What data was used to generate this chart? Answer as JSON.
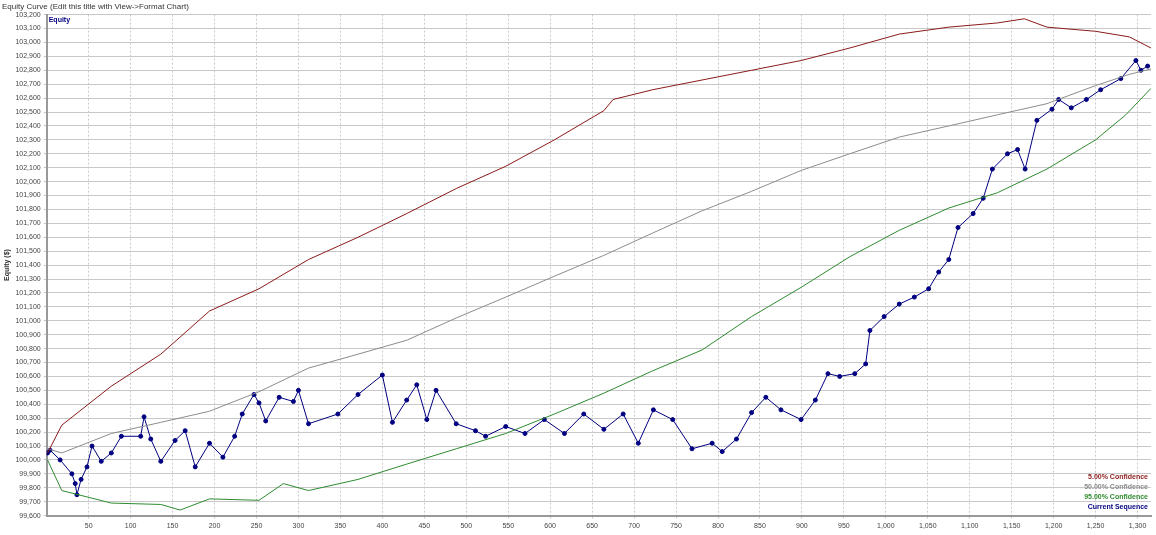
{
  "chart_data": {
    "type": "line",
    "title": "Equity Curve (Edit this title with View->Format Chart)",
    "subtitle": "Equity",
    "ylabel": "Equity ($)",
    "xlim": [
      0,
      1316
    ],
    "xticks": [
      50,
      100,
      150,
      200,
      250,
      300,
      350,
      400,
      450,
      500,
      550,
      600,
      650,
      700,
      750,
      800,
      850,
      900,
      950,
      {
        "value": 1000,
        "label": "1,000"
      },
      {
        "value": 1050,
        "label": "1,050"
      },
      {
        "value": 1100,
        "label": "1,100"
      },
      {
        "value": 1150,
        "label": "1,150"
      },
      {
        "value": 1200,
        "label": "1,200"
      },
      {
        "value": 1250,
        "label": "1,250"
      },
      {
        "value": 1300,
        "label": "1,300"
      }
    ],
    "ylim": [
      99600,
      103200
    ],
    "yticks": [
      {
        "value": 99600,
        "label": "99,600"
      },
      {
        "value": 99700,
        "label": "99,700"
      },
      {
        "value": 99800,
        "label": "99,800"
      },
      {
        "value": 99900,
        "label": "99,900"
      },
      {
        "value": 100000,
        "label": "100,000"
      },
      {
        "value": 100100,
        "label": "100,100"
      },
      {
        "value": 100200,
        "label": "100,200"
      },
      {
        "value": 100300,
        "label": "100,300"
      },
      {
        "value": 100400,
        "label": "100,400"
      },
      {
        "value": 100500,
        "label": "100,500"
      },
      {
        "value": 100600,
        "label": "100,600"
      },
      {
        "value": 100700,
        "label": "100,700"
      },
      {
        "value": 100800,
        "label": "100,800"
      },
      {
        "value": 100900,
        "label": "100,900"
      },
      {
        "value": 101000,
        "label": "101,000"
      },
      {
        "value": 101100,
        "label": "101,100"
      },
      {
        "value": 101200,
        "label": "101,200"
      },
      {
        "value": 101300,
        "label": "101,300"
      },
      {
        "value": 101400,
        "label": "101,400"
      },
      {
        "value": 101500,
        "label": "101,500"
      },
      {
        "value": 101600,
        "label": "101,600"
      },
      {
        "value": 101700,
        "label": "101,700"
      },
      {
        "value": 101800,
        "label": "101,800"
      },
      {
        "value": 101900,
        "label": "101,900"
      },
      {
        "value": 102000,
        "label": "102,000"
      },
      {
        "value": 102100,
        "label": "102,100"
      },
      {
        "value": 102200,
        "label": "102,200"
      },
      {
        "value": 102300,
        "label": "102,300"
      },
      {
        "value": 102400,
        "label": "102,400"
      },
      {
        "value": 102500,
        "label": "102,500"
      },
      {
        "value": 102600,
        "label": "102,600"
      },
      {
        "value": 102700,
        "label": "102,700"
      },
      {
        "value": 102800,
        "label": "102,800"
      },
      {
        "value": 102900,
        "label": "102,900"
      },
      {
        "value": 103000,
        "label": "103,000"
      },
      {
        "value": 103100,
        "label": "103,100"
      },
      {
        "value": 103200,
        "label": "103,200"
      }
    ],
    "grid": true,
    "legend": "bottom right",
    "line_style": "solid",
    "series": [
      {
        "name": "5.00% Confidence",
        "color": "#8b1a1a",
        "marker": "none",
        "x": [
          1,
          18,
          77,
          136,
          194,
          253,
          312,
          371,
          429,
          488,
          547,
          605,
          664,
          675,
          722,
          781,
          840,
          899,
          957,
          1016,
          1075,
          1133,
          1165,
          1192,
          1250,
          1290,
          1316
        ],
        "values": [
          100050,
          100250,
          100530,
          100760,
          101070,
          101230,
          101440,
          101600,
          101770,
          101950,
          102110,
          102300,
          102510,
          102590,
          102660,
          102730,
          102800,
          102870,
          102960,
          103060,
          103110,
          103140,
          103170,
          103110,
          103080,
          103040,
          102960
        ]
      },
      {
        "name": "50.00% Confidence",
        "color": "#8c8c8c",
        "marker": "none",
        "x": [
          1,
          18,
          77,
          136,
          194,
          253,
          312,
          371,
          429,
          488,
          547,
          605,
          664,
          722,
          781,
          840,
          899,
          957,
          1016,
          1075,
          1133,
          1192,
          1250,
          1290,
          1316
        ],
        "values": [
          100080,
          100050,
          100190,
          100270,
          100350,
          100490,
          100660,
          100760,
          100860,
          101020,
          101170,
          101320,
          101470,
          101630,
          101790,
          101930,
          102080,
          102200,
          102320,
          102400,
          102480,
          102560,
          102690,
          102770,
          102810
        ]
      },
      {
        "name": "95.00% Confidence",
        "color": "#2e8b2e",
        "marker": "none",
        "x": [
          1,
          18,
          77,
          136,
          159,
          194,
          253,
          282,
          312,
          371,
          429,
          488,
          547,
          605,
          664,
          722,
          781,
          840,
          899,
          957,
          1016,
          1075,
          1133,
          1192,
          1250,
          1286,
          1316
        ],
        "values": [
          100000,
          99780,
          99690,
          99680,
          99640,
          99720,
          99710,
          99830,
          99780,
          99860,
          99970,
          100080,
          100190,
          100330,
          100480,
          100640,
          100790,
          101030,
          101240,
          101460,
          101650,
          101810,
          101920,
          102090,
          102300,
          102480,
          102670
        ]
      },
      {
        "name": "Current Sequence",
        "color": "#000080",
        "marker": "circle",
        "x": [
          1,
          4,
          16,
          30,
          34,
          36,
          41,
          48,
          54,
          65,
          77,
          89,
          112,
          116,
          124,
          136,
          153,
          165,
          177,
          194,
          210,
          224,
          233,
          247,
          253,
          261,
          277,
          294,
          300,
          312,
          347,
          371,
          400,
          412,
          429,
          441,
          453,
          464,
          488,
          511,
          523,
          547,
          570,
          593,
          617,
          640,
          664,
          687,
          705,
          723,
          746,
          769,
          793,
          805,
          822,
          840,
          857,
          875,
          899,
          916,
          931,
          945,
          963,
          976,
          981,
          998,
          1016,
          1034,
          1051,
          1063,
          1075,
          1086,
          1104,
          1116,
          1127,
          1145,
          1157,
          1166,
          1180,
          1198,
          1206,
          1221,
          1239,
          1256,
          1280,
          1298,
          1304,
          1312
        ],
        "values": [
          100050,
          100070,
          100000,
          99900,
          99830,
          99750,
          99860,
          99950,
          100100,
          99990,
          100050,
          100170,
          100170,
          100310,
          100150,
          99990,
          100140,
          100210,
          99950,
          100120,
          100020,
          100170,
          100330,
          100470,
          100410,
          100280,
          100450,
          100420,
          100500,
          100260,
          100330,
          100470,
          100610,
          100270,
          100430,
          100540,
          100290,
          100500,
          100260,
          100210,
          100170,
          100240,
          100190,
          100290,
          100190,
          100330,
          100220,
          100330,
          100120,
          100360,
          100290,
          100080,
          100120,
          100060,
          100150,
          100340,
          100450,
          100360,
          100290,
          100430,
          100620,
          100600,
          100620,
          100690,
          100930,
          101030,
          101120,
          101170,
          101230,
          101350,
          101440,
          101670,
          101770,
          101880,
          102090,
          102200,
          102230,
          102090,
          102440,
          102520,
          102590,
          102530,
          102590,
          102660,
          102740,
          102870,
          102800,
          102830
        ]
      }
    ]
  }
}
